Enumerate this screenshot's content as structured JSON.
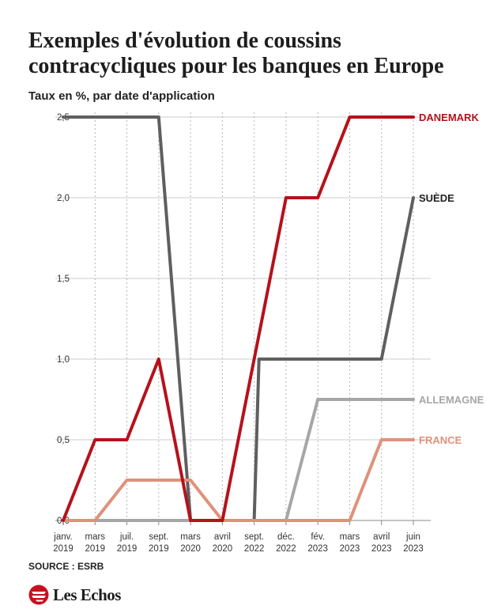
{
  "header": {
    "title": "Exemples d'évolution de coussins contracycliques pour les banques en Europe",
    "subtitle": "Taux en %, par date d'application"
  },
  "footer": {
    "source": "SOURCE : ESRB",
    "brand": "Les Echos"
  },
  "colors": {
    "danemark": "#b5121b",
    "suede": "#5f5f5f",
    "allemagne": "#a6a6a6",
    "france": "#e0917a",
    "grid": "#cccccc",
    "axis": "#888888"
  },
  "chart_data": {
    "type": "line",
    "ylim": [
      0,
      2.5
    ],
    "grid": true,
    "categories": [
      [
        "janv.",
        "2019"
      ],
      [
        "mars",
        "2019"
      ],
      [
        "juil.",
        "2019"
      ],
      [
        "sept.",
        "2019"
      ],
      [
        "mars",
        "2020"
      ],
      [
        "avril",
        "2020"
      ],
      [
        "sept.",
        "2022"
      ],
      [
        "déc.",
        "2022"
      ],
      [
        "fév.",
        "2023"
      ],
      [
        "mars",
        "2023"
      ],
      [
        "avril",
        "2023"
      ],
      [
        "juin",
        "2023"
      ]
    ],
    "y_ticks": [
      {
        "value": 0,
        "label": "0,0"
      },
      {
        "value": 0.5,
        "label": "0,5"
      },
      {
        "value": 1.0,
        "label": "1,0"
      },
      {
        "value": 1.5,
        "label": "1,5"
      },
      {
        "value": 2.0,
        "label": "2,0"
      },
      {
        "value": 2.5,
        "label": "2,5"
      }
    ],
    "series": [
      {
        "key": "suede",
        "name": "SUÈDE",
        "color": "#5f5f5f",
        "points": [
          [
            0,
            2.5
          ],
          [
            1,
            2.5
          ],
          [
            2,
            2.5
          ],
          [
            3,
            2.5
          ],
          [
            4,
            0
          ],
          [
            5,
            0
          ],
          [
            6,
            0
          ],
          [
            6.15,
            1.0
          ],
          [
            7,
            1.0
          ],
          [
            8,
            1.0
          ],
          [
            9,
            1.0
          ],
          [
            10,
            1.0
          ],
          [
            11,
            2.0
          ]
        ]
      },
      {
        "key": "allemagne",
        "name": "ALLEMAGNE",
        "color": "#a6a6a6",
        "points": [
          [
            0,
            0
          ],
          [
            1,
            0
          ],
          [
            2,
            0
          ],
          [
            3,
            0
          ],
          [
            4,
            0
          ],
          [
            5,
            0
          ],
          [
            6,
            0
          ],
          [
            7,
            0
          ],
          [
            8,
            0.75
          ],
          [
            9,
            0.75
          ],
          [
            10,
            0.75
          ],
          [
            11,
            0.75
          ]
        ]
      },
      {
        "key": "france",
        "name": "FRANCE",
        "color": "#e0917a",
        "points": [
          [
            0,
            0
          ],
          [
            1,
            0
          ],
          [
            2,
            0.25
          ],
          [
            3,
            0.25
          ],
          [
            4,
            0.25
          ],
          [
            5,
            0
          ],
          [
            6,
            0
          ],
          [
            7,
            0
          ],
          [
            8,
            0
          ],
          [
            9,
            0
          ],
          [
            10,
            0.5
          ],
          [
            11,
            0.5
          ]
        ]
      },
      {
        "key": "danemark",
        "name": "DANEMARK",
        "color": "#b5121b",
        "points": [
          [
            0,
            0
          ],
          [
            1,
            0.5
          ],
          [
            2,
            0.5
          ],
          [
            3,
            1.0
          ],
          [
            4,
            0
          ],
          [
            5,
            0
          ],
          [
            6,
            1.0
          ],
          [
            7,
            2.0
          ],
          [
            8,
            2.0
          ],
          [
            9,
            2.5
          ],
          [
            10,
            2.5
          ],
          [
            11,
            2.5
          ]
        ]
      }
    ]
  }
}
